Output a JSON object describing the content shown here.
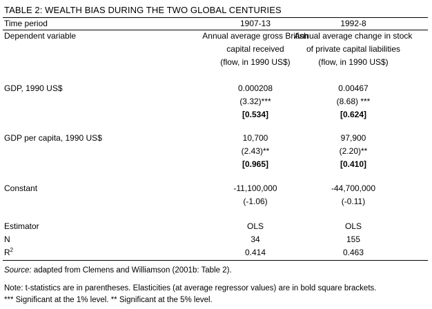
{
  "table": {
    "title": "TABLE 2:   WEALTH BIAS DURING THE TWO GLOBAL CENTURIES",
    "header": {
      "label": "Time period",
      "col1": "1907-13",
      "col2": "1992-8"
    },
    "dependent": {
      "label": "Dependent variable",
      "col1": [
        "Annual average gross British",
        "capital received",
        "(flow, in 1990 US$)"
      ],
      "col2": [
        "Annual average change in stock",
        "of private capital liabilities",
        "(flow, in 1990 US$)"
      ]
    },
    "gdp": {
      "label": "GDP, 1990 US$",
      "col1": {
        "coef": "0.000208",
        "tstat": "(3.32)***",
        "elast": "[0.534]"
      },
      "col2": {
        "coef": "0.00467",
        "tstat": "(8.68) ***",
        "elast": "[0.624]"
      }
    },
    "gdp_pc": {
      "label": "GDP per capita, 1990 US$",
      "col1": {
        "coef": "10,700",
        "tstat": "(2.43)**",
        "elast": "[0.965]"
      },
      "col2": {
        "coef": "97,900",
        "tstat": "(2.20)**",
        "elast": "[0.410]"
      }
    },
    "constant": {
      "label": "Constant",
      "col1": {
        "coef": "-11,100,000",
        "tstat": "(-1.06)"
      },
      "col2": {
        "coef": "-44,700,000",
        "tstat": "(-0.11)"
      }
    },
    "estimator": {
      "label": "Estimator",
      "col1": "OLS",
      "col2": "OLS"
    },
    "n": {
      "label": "N",
      "col1": "34",
      "col2": "155"
    },
    "r2": {
      "label_base": "R",
      "label_sup": "2",
      "col1": "0.414",
      "col2": "0.463"
    }
  },
  "source": {
    "label": "Source:",
    "text": " adapted from Clemens and Williamson (2001b: Table 2)."
  },
  "note": {
    "line1": "Note: t-statistics are in parentheses. Elasticities (at average regressor values) are in bold square brackets.",
    "line2": "*** Significant at the 1% level. ** Significant at the 5% level."
  }
}
